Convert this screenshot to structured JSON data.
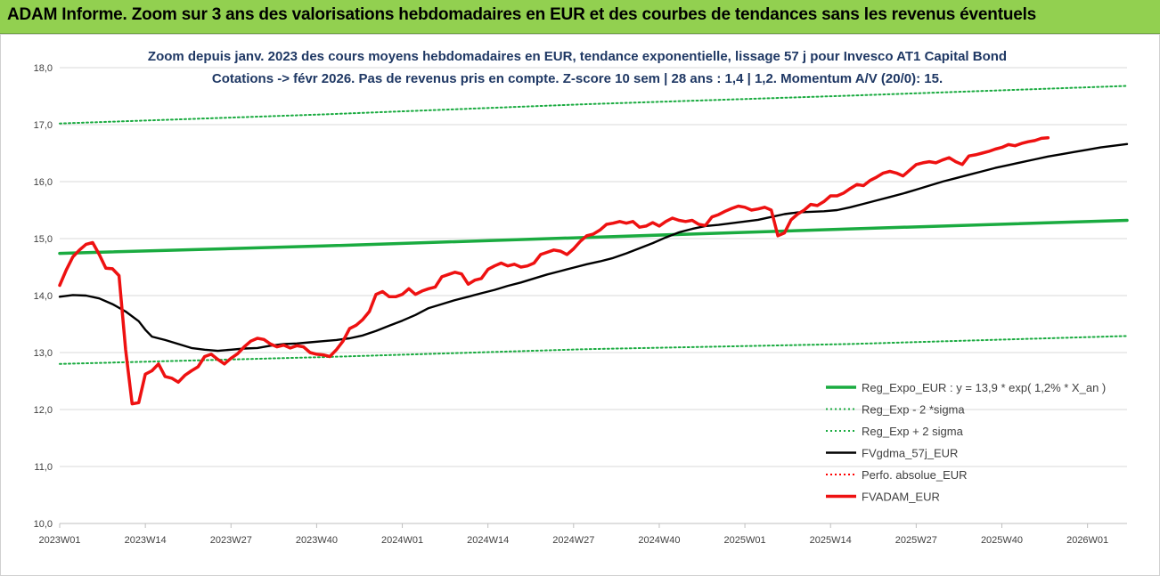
{
  "header": {
    "title": "ADAM Informe. Zoom sur 3 ans des valorisations hebdomadaires en EUR et des courbes de tendances sans les revenus éventuels"
  },
  "chart_data": {
    "type": "line",
    "title_line1": "Zoom depuis janv. 2023 des cours moyens hebdomadaires en EUR, tendance exponentielle, lissage 57 j pour Invesco AT1 Capital Bond",
    "title_line2": "Cotations -> févr 2026.  Pas de revenus pris en compte. Z-score 10 sem | 28 ans : 1,4 | 1,2. Momentum A/V (20/0): 15.",
    "ylim": [
      10,
      18
    ],
    "y_ticks": [
      "10,0",
      "11,0",
      "12,0",
      "13,0",
      "14,0",
      "15,0",
      "16,0",
      "17,0",
      "18,0"
    ],
    "x_ticks": [
      "2023W01",
      "2023W14",
      "2023W27",
      "2023W40",
      "2024W01",
      "2024W14",
      "2024W27",
      "2024W40",
      "2025W01",
      "2025W14",
      "2025W27",
      "2025W40",
      "2026W01"
    ],
    "x_range_weeks": [
      0,
      162
    ],
    "series": [
      {
        "name": "Reg_Expo_EUR : y = 13,9 * exp( 1,2% *  X_an )",
        "color": "#1aab40",
        "style": "solid-thick",
        "points": [
          [
            0,
            14.74
          ],
          [
            40,
            14.87
          ],
          [
            80,
            15.02
          ],
          [
            120,
            15.17
          ],
          [
            162,
            15.32
          ]
        ]
      },
      {
        "name": "Reg_Exp - 2 *sigma",
        "color": "#1aab40",
        "style": "dotted",
        "points": [
          [
            0,
            12.8
          ],
          [
            40,
            12.92
          ],
          [
            80,
            13.06
          ],
          [
            120,
            13.15
          ],
          [
            162,
            13.29
          ]
        ]
      },
      {
        "name": "Reg_Exp + 2 sigma",
        "color": "#1aab40",
        "style": "dotted",
        "points": [
          [
            0,
            17.02
          ],
          [
            40,
            17.18
          ],
          [
            80,
            17.36
          ],
          [
            120,
            17.51
          ],
          [
            162,
            17.68
          ]
        ]
      },
      {
        "name": "FVgdma_57j_EUR",
        "color": "#000000",
        "style": "solid",
        "points": [
          [
            0,
            13.98
          ],
          [
            2,
            14.01
          ],
          [
            4,
            14.0
          ],
          [
            6,
            13.95
          ],
          [
            8,
            13.85
          ],
          [
            10,
            13.72
          ],
          [
            12,
            13.55
          ],
          [
            13,
            13.4
          ],
          [
            14,
            13.28
          ],
          [
            16,
            13.22
          ],
          [
            18,
            13.15
          ],
          [
            20,
            13.08
          ],
          [
            22,
            13.05
          ],
          [
            24,
            13.03
          ],
          [
            26,
            13.05
          ],
          [
            28,
            13.07
          ],
          [
            30,
            13.08
          ],
          [
            32,
            13.12
          ],
          [
            34,
            13.15
          ],
          [
            36,
            13.16
          ],
          [
            38,
            13.18
          ],
          [
            40,
            13.2
          ],
          [
            42,
            13.22
          ],
          [
            44,
            13.25
          ],
          [
            46,
            13.3
          ],
          [
            48,
            13.38
          ],
          [
            50,
            13.47
          ],
          [
            52,
            13.56
          ],
          [
            54,
            13.66
          ],
          [
            56,
            13.78
          ],
          [
            58,
            13.85
          ],
          [
            60,
            13.92
          ],
          [
            62,
            13.98
          ],
          [
            64,
            14.04
          ],
          [
            66,
            14.1
          ],
          [
            68,
            14.17
          ],
          [
            70,
            14.23
          ],
          [
            72,
            14.3
          ],
          [
            74,
            14.37
          ],
          [
            76,
            14.43
          ],
          [
            78,
            14.49
          ],
          [
            80,
            14.55
          ],
          [
            82,
            14.6
          ],
          [
            84,
            14.66
          ],
          [
            86,
            14.74
          ],
          [
            88,
            14.83
          ],
          [
            90,
            14.92
          ],
          [
            92,
            15.02
          ],
          [
            94,
            15.11
          ],
          [
            96,
            15.17
          ],
          [
            98,
            15.22
          ],
          [
            100,
            15.24
          ],
          [
            102,
            15.27
          ],
          [
            104,
            15.3
          ],
          [
            106,
            15.33
          ],
          [
            108,
            15.38
          ],
          [
            110,
            15.43
          ],
          [
            112,
            15.46
          ],
          [
            114,
            15.47
          ],
          [
            116,
            15.48
          ],
          [
            118,
            15.5
          ],
          [
            120,
            15.55
          ],
          [
            122,
            15.61
          ],
          [
            124,
            15.67
          ],
          [
            126,
            15.73
          ],
          [
            128,
            15.79
          ],
          [
            130,
            15.86
          ],
          [
            132,
            15.93
          ],
          [
            134,
            16.0
          ],
          [
            136,
            16.06
          ],
          [
            138,
            16.12
          ],
          [
            140,
            16.18
          ],
          [
            142,
            16.24
          ],
          [
            144,
            16.29
          ],
          [
            146,
            16.34
          ],
          [
            148,
            16.39
          ],
          [
            150,
            16.44
          ],
          [
            152,
            16.48
          ],
          [
            154,
            16.52
          ],
          [
            156,
            16.56
          ],
          [
            158,
            16.6
          ],
          [
            160,
            16.63
          ],
          [
            162,
            16.66
          ]
        ]
      },
      {
        "name": "Perfo. absolue_EUR",
        "color": "#ff0000",
        "style": "dotted",
        "points": []
      },
      {
        "name": "FVADAM_EUR",
        "color": "#ee1111",
        "style": "solid-thick",
        "points": [
          [
            0,
            14.18
          ],
          [
            1,
            14.45
          ],
          [
            2,
            14.68
          ],
          [
            3,
            14.8
          ],
          [
            4,
            14.9
          ],
          [
            5,
            14.93
          ],
          [
            6,
            14.72
          ],
          [
            7,
            14.48
          ],
          [
            8,
            14.47
          ],
          [
            9,
            14.35
          ],
          [
            10,
            13.05
          ],
          [
            11,
            12.1
          ],
          [
            12,
            12.12
          ],
          [
            13,
            12.62
          ],
          [
            14,
            12.68
          ],
          [
            15,
            12.8
          ],
          [
            16,
            12.58
          ],
          [
            17,
            12.55
          ],
          [
            18,
            12.48
          ],
          [
            19,
            12.6
          ],
          [
            20,
            12.68
          ],
          [
            21,
            12.75
          ],
          [
            22,
            12.93
          ],
          [
            23,
            12.97
          ],
          [
            24,
            12.88
          ],
          [
            25,
            12.8
          ],
          [
            26,
            12.9
          ],
          [
            27,
            12.98
          ],
          [
            28,
            13.1
          ],
          [
            29,
            13.2
          ],
          [
            30,
            13.25
          ],
          [
            31,
            13.23
          ],
          [
            32,
            13.15
          ],
          [
            33,
            13.1
          ],
          [
            34,
            13.13
          ],
          [
            35,
            13.08
          ],
          [
            36,
            13.12
          ],
          [
            37,
            13.1
          ],
          [
            38,
            13.0
          ],
          [
            39,
            12.97
          ],
          [
            40,
            12.96
          ],
          [
            41,
            12.93
          ],
          [
            42,
            13.05
          ],
          [
            43,
            13.2
          ],
          [
            44,
            13.42
          ],
          [
            45,
            13.48
          ],
          [
            46,
            13.58
          ],
          [
            47,
            13.72
          ],
          [
            48,
            14.02
          ],
          [
            49,
            14.07
          ],
          [
            50,
            13.98
          ],
          [
            51,
            13.98
          ],
          [
            52,
            14.02
          ],
          [
            53,
            14.12
          ],
          [
            54,
            14.02
          ],
          [
            55,
            14.08
          ],
          [
            56,
            14.12
          ],
          [
            57,
            14.15
          ],
          [
            58,
            14.33
          ],
          [
            59,
            14.37
          ],
          [
            60,
            14.41
          ],
          [
            61,
            14.38
          ],
          [
            62,
            14.2
          ],
          [
            63,
            14.27
          ],
          [
            64,
            14.3
          ],
          [
            65,
            14.46
          ],
          [
            66,
            14.52
          ],
          [
            67,
            14.57
          ],
          [
            68,
            14.52
          ],
          [
            69,
            14.55
          ],
          [
            70,
            14.5
          ],
          [
            71,
            14.52
          ],
          [
            72,
            14.57
          ],
          [
            73,
            14.72
          ],
          [
            74,
            14.76
          ],
          [
            75,
            14.8
          ],
          [
            76,
            14.78
          ],
          [
            77,
            14.72
          ],
          [
            78,
            14.82
          ],
          [
            79,
            14.95
          ],
          [
            80,
            15.05
          ],
          [
            81,
            15.08
          ],
          [
            82,
            15.15
          ],
          [
            83,
            15.25
          ],
          [
            84,
            15.27
          ],
          [
            85,
            15.3
          ],
          [
            86,
            15.27
          ],
          [
            87,
            15.3
          ],
          [
            88,
            15.2
          ],
          [
            89,
            15.22
          ],
          [
            90,
            15.28
          ],
          [
            91,
            15.22
          ],
          [
            92,
            15.3
          ],
          [
            93,
            15.36
          ],
          [
            94,
            15.32
          ],
          [
            95,
            15.3
          ],
          [
            96,
            15.32
          ],
          [
            97,
            15.25
          ],
          [
            98,
            15.23
          ],
          [
            99,
            15.38
          ],
          [
            100,
            15.42
          ],
          [
            101,
            15.48
          ],
          [
            102,
            15.53
          ],
          [
            103,
            15.57
          ],
          [
            104,
            15.55
          ],
          [
            105,
            15.5
          ],
          [
            106,
            15.52
          ],
          [
            107,
            15.55
          ],
          [
            108,
            15.5
          ],
          [
            109,
            15.05
          ],
          [
            110,
            15.1
          ],
          [
            111,
            15.33
          ],
          [
            112,
            15.43
          ],
          [
            113,
            15.5
          ],
          [
            114,
            15.6
          ],
          [
            115,
            15.58
          ],
          [
            116,
            15.65
          ],
          [
            117,
            15.75
          ],
          [
            118,
            15.75
          ],
          [
            119,
            15.8
          ],
          [
            120,
            15.88
          ],
          [
            121,
            15.95
          ],
          [
            122,
            15.93
          ],
          [
            123,
            16.02
          ],
          [
            124,
            16.08
          ],
          [
            125,
            16.15
          ],
          [
            126,
            16.18
          ],
          [
            127,
            16.15
          ],
          [
            128,
            16.1
          ],
          [
            129,
            16.2
          ],
          [
            130,
            16.3
          ],
          [
            131,
            16.33
          ],
          [
            132,
            16.35
          ],
          [
            133,
            16.33
          ],
          [
            134,
            16.38
          ],
          [
            135,
            16.42
          ],
          [
            136,
            16.35
          ],
          [
            137,
            16.3
          ],
          [
            138,
            16.45
          ],
          [
            139,
            16.47
          ],
          [
            140,
            16.5
          ],
          [
            141,
            16.53
          ],
          [
            142,
            16.57
          ],
          [
            143,
            16.6
          ],
          [
            144,
            16.65
          ],
          [
            145,
            16.63
          ],
          [
            146,
            16.67
          ],
          [
            147,
            16.7
          ],
          [
            148,
            16.72
          ],
          [
            149,
            16.76
          ],
          [
            150,
            16.77
          ]
        ]
      }
    ],
    "legend_placement": "bottom-right",
    "grid": "horizontal"
  }
}
